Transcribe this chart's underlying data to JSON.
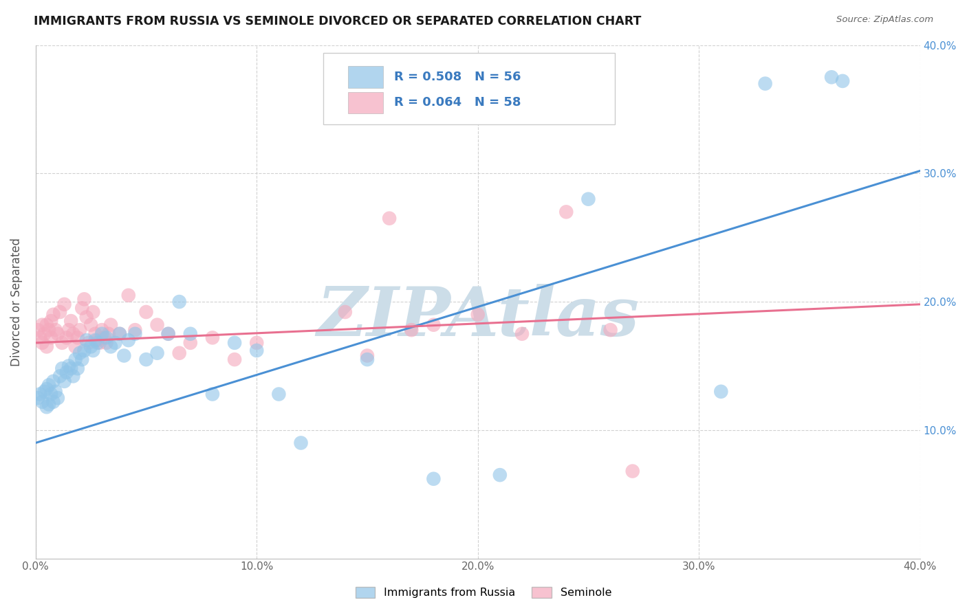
{
  "title": "IMMIGRANTS FROM RUSSIA VS SEMINOLE DIVORCED OR SEPARATED CORRELATION CHART",
  "source": "Source: ZipAtlas.com",
  "ylabel": "Divorced or Separated",
  "xlim": [
    0.0,
    0.4
  ],
  "ylim": [
    0.0,
    0.4
  ],
  "xtick_vals": [
    0.0,
    0.1,
    0.2,
    0.3,
    0.4
  ],
  "ytick_vals": [
    0.1,
    0.2,
    0.3,
    0.4
  ],
  "color_blue": "#90c4e8",
  "color_pink": "#f4a8bc",
  "line_blue": "#4a90d4",
  "line_pink": "#e87090",
  "watermark": "ZIPAtlas",
  "watermark_color": "#ccdde8",
  "blue_line_x": [
    0.0,
    0.4
  ],
  "blue_line_y": [
    0.09,
    0.302
  ],
  "pink_line_x": [
    0.0,
    0.4
  ],
  "pink_line_y": [
    0.168,
    0.198
  ],
  "blue_scatter_x": [
    0.001,
    0.002,
    0.003,
    0.004,
    0.005,
    0.005,
    0.006,
    0.006,
    0.007,
    0.008,
    0.008,
    0.009,
    0.01,
    0.011,
    0.012,
    0.013,
    0.014,
    0.015,
    0.016,
    0.017,
    0.018,
    0.019,
    0.02,
    0.021,
    0.022,
    0.023,
    0.025,
    0.026,
    0.027,
    0.028,
    0.03,
    0.032,
    0.034,
    0.036,
    0.038,
    0.04,
    0.042,
    0.045,
    0.05,
    0.055,
    0.06,
    0.065,
    0.07,
    0.08,
    0.09,
    0.1,
    0.11,
    0.12,
    0.15,
    0.18,
    0.21,
    0.25,
    0.31,
    0.33,
    0.36,
    0.365
  ],
  "blue_scatter_y": [
    0.125,
    0.128,
    0.122,
    0.13,
    0.118,
    0.132,
    0.12,
    0.135,
    0.128,
    0.122,
    0.138,
    0.13,
    0.125,
    0.142,
    0.148,
    0.138,
    0.145,
    0.15,
    0.148,
    0.142,
    0.155,
    0.148,
    0.16,
    0.155,
    0.162,
    0.17,
    0.165,
    0.162,
    0.17,
    0.168,
    0.175,
    0.172,
    0.165,
    0.168,
    0.175,
    0.158,
    0.17,
    0.175,
    0.155,
    0.16,
    0.175,
    0.2,
    0.175,
    0.128,
    0.168,
    0.162,
    0.128,
    0.09,
    0.155,
    0.062,
    0.065,
    0.28,
    0.13,
    0.37,
    0.375,
    0.372
  ],
  "pink_scatter_x": [
    0.001,
    0.002,
    0.003,
    0.003,
    0.004,
    0.005,
    0.005,
    0.006,
    0.007,
    0.007,
    0.008,
    0.009,
    0.01,
    0.011,
    0.012,
    0.013,
    0.014,
    0.015,
    0.016,
    0.017,
    0.018,
    0.019,
    0.02,
    0.021,
    0.022,
    0.023,
    0.024,
    0.025,
    0.026,
    0.027,
    0.028,
    0.029,
    0.03,
    0.031,
    0.032,
    0.033,
    0.034,
    0.038,
    0.042,
    0.045,
    0.05,
    0.055,
    0.06,
    0.065,
    0.07,
    0.08,
    0.09,
    0.1,
    0.14,
    0.15,
    0.16,
    0.17,
    0.18,
    0.2,
    0.22,
    0.24,
    0.26,
    0.27
  ],
  "pink_scatter_y": [
    0.178,
    0.172,
    0.168,
    0.182,
    0.175,
    0.165,
    0.182,
    0.178,
    0.185,
    0.172,
    0.19,
    0.178,
    0.175,
    0.192,
    0.168,
    0.198,
    0.172,
    0.178,
    0.185,
    0.175,
    0.165,
    0.172,
    0.178,
    0.195,
    0.202,
    0.188,
    0.168,
    0.182,
    0.192,
    0.175,
    0.17,
    0.168,
    0.178,
    0.172,
    0.168,
    0.175,
    0.182,
    0.175,
    0.205,
    0.178,
    0.192,
    0.182,
    0.175,
    0.16,
    0.168,
    0.172,
    0.155,
    0.168,
    0.192,
    0.158,
    0.265,
    0.178,
    0.182,
    0.19,
    0.175,
    0.27,
    0.178,
    0.068
  ],
  "legend_r1": "R = 0.508",
  "legend_n1": "N = 56",
  "legend_r2": "R = 0.064",
  "legend_n2": "N = 58"
}
